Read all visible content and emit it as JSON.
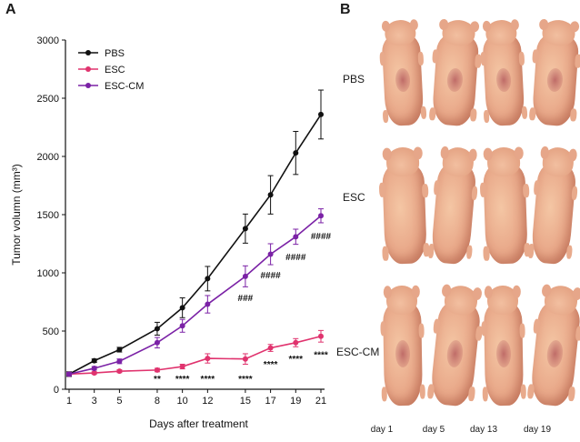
{
  "figure": {
    "panel_a_letter": "A",
    "panel_b_letter": "B"
  },
  "chart_data": {
    "type": "line",
    "x": [
      1,
      3,
      5,
      8,
      10,
      12,
      15,
      17,
      19,
      21
    ],
    "xticks": [
      "1",
      "3",
      "5",
      "8",
      "10",
      "12",
      "15",
      "17",
      "19",
      "21"
    ],
    "xlabel": "Days after treatment",
    "ylabel": "Tumor volumn (mm³)",
    "ylim": [
      0,
      3000
    ],
    "yticks": [
      0,
      500,
      1000,
      1500,
      2000,
      2500,
      3000
    ],
    "legend_position": "top-left",
    "series": [
      {
        "name": "PBS",
        "color": "#111111",
        "values": [
          130,
          245,
          340,
          520,
          700,
          950,
          1380,
          1670,
          2030,
          2360
        ],
        "errors": [
          20,
          15,
          20,
          55,
          85,
          105,
          125,
          165,
          185,
          210
        ]
      },
      {
        "name": "ESC",
        "color": "#e0336e",
        "values": [
          130,
          140,
          155,
          165,
          195,
          265,
          260,
          355,
          400,
          455
        ],
        "errors": [
          10,
          10,
          12,
          15,
          20,
          40,
          45,
          30,
          35,
          50
        ]
      },
      {
        "name": "ESC-CM",
        "color": "#7b22a6",
        "values": [
          130,
          180,
          240,
          400,
          545,
          730,
          970,
          1160,
          1310,
          1490
        ],
        "errors": [
          15,
          15,
          20,
          45,
          55,
          75,
          90,
          90,
          65,
          60
        ]
      }
    ],
    "annotations": [
      {
        "x": 8,
        "text": "**",
        "y": 95
      },
      {
        "x": 10,
        "text": "****",
        "y": 95
      },
      {
        "x": 12,
        "text": "****",
        "y": 95
      },
      {
        "x": 15,
        "text": "****",
        "y": 95
      },
      {
        "x": 17,
        "text": "****",
        "y": 220
      },
      {
        "x": 19,
        "text": "****",
        "y": 265
      },
      {
        "x": 21,
        "text": "****",
        "y": 300
      },
      {
        "x": 15,
        "text": "###",
        "y": 790
      },
      {
        "x": 17,
        "text": "####",
        "y": 985
      },
      {
        "x": 19,
        "text": "####",
        "y": 1140
      },
      {
        "x": 21,
        "text": "####",
        "y": 1320
      }
    ]
  },
  "panel_b": {
    "groups": [
      "PBS",
      "ESC",
      "ESC-CM"
    ],
    "days": [
      "day 1",
      "day 5",
      "day 13",
      "day 19"
    ]
  }
}
